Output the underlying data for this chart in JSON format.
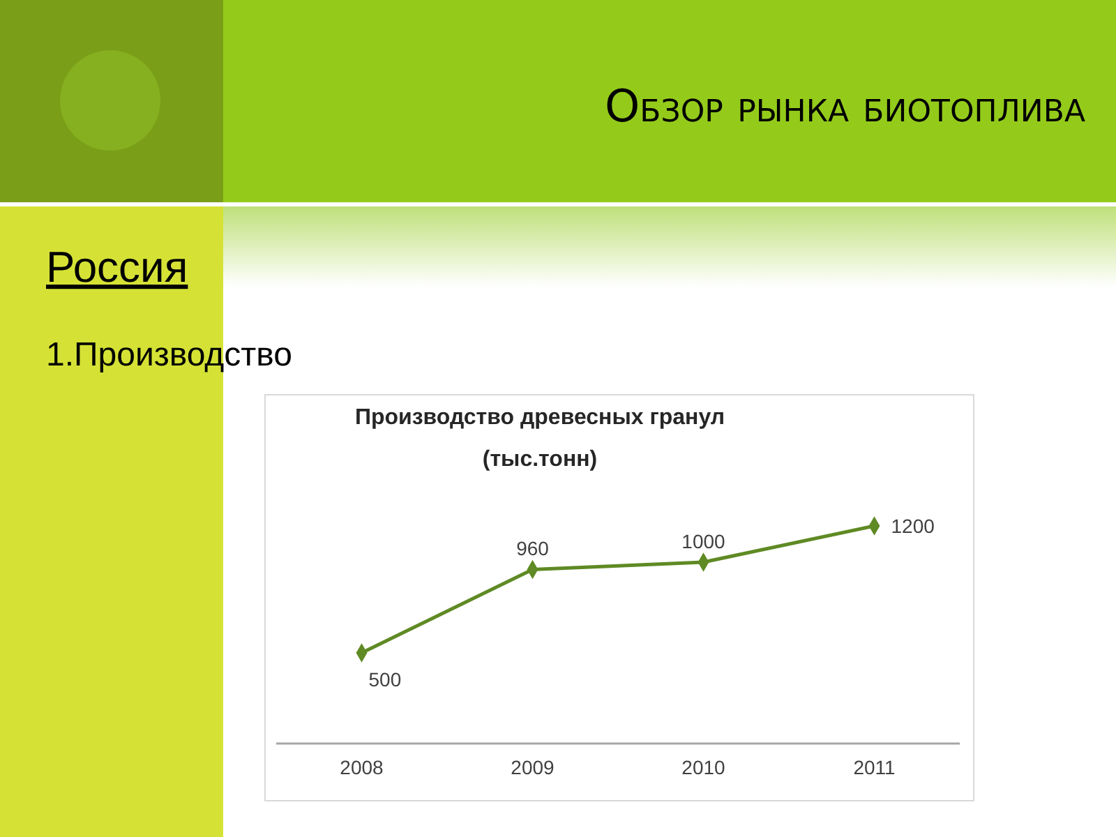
{
  "chart_data": {
    "type": "line",
    "title": "Производство древесных гранул",
    "subtitle": "(тыс.тонн)",
    "annotations": [
      "Обзор рынка биотоплива",
      "Россия",
      "1.Производство"
    ],
    "categories": [
      "2008",
      "2009",
      "2010",
      "2011"
    ],
    "series": [
      {
        "color": "#5f8a24",
        "values": [
          500,
          960,
          1000,
          1200
        ]
      }
    ],
    "tick_labels": "x",
    "data_labels": true,
    "marker": "diamond",
    "line_style": "solid"
  }
}
